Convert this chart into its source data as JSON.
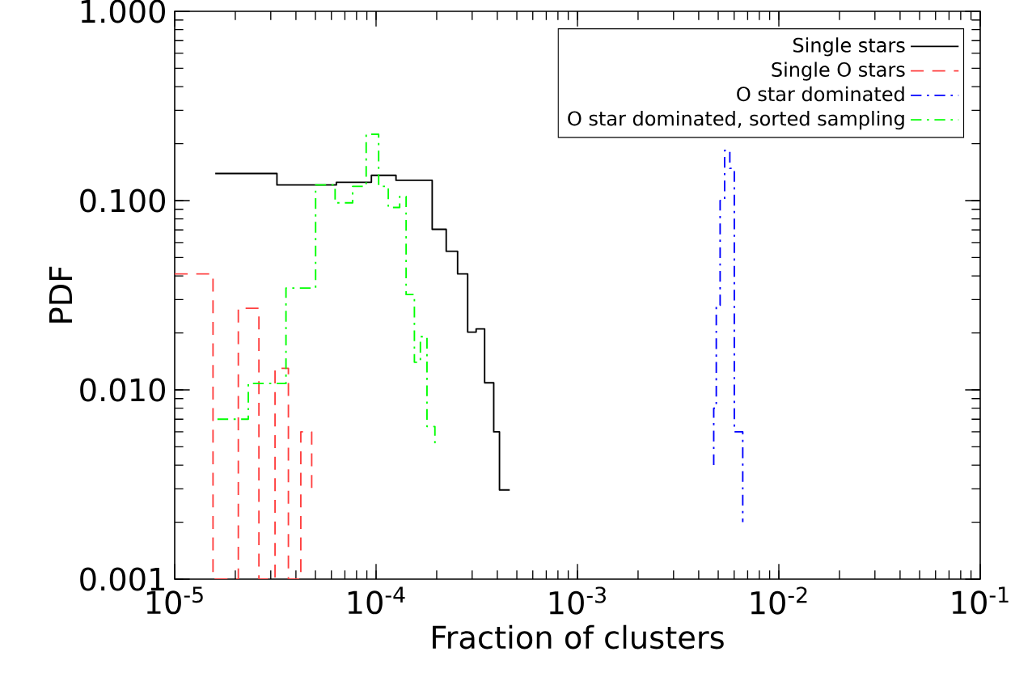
{
  "chart_data": {
    "type": "step",
    "xlabel": "Fraction of clusters",
    "ylabel": "PDF",
    "log": "xy",
    "xlim": [
      1e-05,
      0.1
    ],
    "ylim": [
      0.001,
      1.0
    ],
    "xticks": [
      {
        "value": 1e-05,
        "label": "10$^{-5}$"
      },
      {
        "value": 0.0001,
        "label": "10$^{-4}$"
      },
      {
        "value": 0.001,
        "label": "10$^{-3}$"
      },
      {
        "value": 0.01,
        "label": "10$^{-2}$"
      },
      {
        "value": 0.1,
        "label": "10$^{-1}$"
      }
    ],
    "yticks": [
      {
        "value": 0.001,
        "label": "0.001"
      },
      {
        "value": 0.01,
        "label": "0.010"
      },
      {
        "value": 0.1,
        "label": "0.100"
      },
      {
        "value": 1.0,
        "label": "1.000"
      }
    ],
    "legend": "top right",
    "grid": false,
    "marker": "none",
    "series": [
      {
        "name": "Single stars",
        "color": "#000000",
        "line_style": "solid",
        "x": [
          1.59e-05,
          3.22e-05,
          6.35e-05,
          9.48e-05,
          0.0001256,
          0.00019,
          0.000223,
          0.000254,
          0.000285,
          0.000314,
          0.000346,
          0.000384,
          0.00041,
          0.000461
        ],
        "values": [
          0.139,
          0.121,
          0.125,
          0.136,
          0.128,
          0.0705,
          0.054,
          0.041,
          0.0202,
          0.021,
          0.0109,
          0.006,
          0.00296,
          0.00296
        ]
      },
      {
        "name": "Single O stars",
        "color": "#ff4040",
        "line_style": "dashed",
        "x": [
          1e-05,
          1.55e-05,
          2.07e-05,
          2.62e-05,
          3.15e-05,
          3.67e-05,
          4.23e-05,
          4.79e-05
        ],
        "values": [
          0.041,
          0.001,
          0.027,
          0.001,
          0.013,
          0.001,
          0.006,
          0.003
        ]
      },
      {
        "name": "O star dominated",
        "color": "#0000ff",
        "line_style": "dashdot",
        "x": [
          0.00475,
          0.00475,
          0.00489,
          0.00511,
          0.00538,
          0.00571,
          0.00601,
          0.00662,
          0.00662
        ],
        "values": [
          0.004,
          0.008,
          0.028,
          0.1,
          0.184,
          0.148,
          0.006,
          0.002,
          0.002
        ]
      },
      {
        "name": "O star dominated, sorted sampling",
        "color": "#00ff00",
        "line_style": "dashdot",
        "x": [
          1.63e-05,
          2.32e-05,
          3.57e-05,
          5.01e-05,
          6.26e-05,
          7.65e-05,
          8.93e-05,
          0.000103,
          0.000115,
          0.000131,
          0.000141,
          0.000155,
          0.000166,
          0.000179,
          0.000196
        ],
        "values": [
          0.007,
          0.0108,
          0.0345,
          0.121,
          0.0973,
          0.119,
          0.224,
          0.119,
          0.092,
          0.105,
          0.0319,
          0.014,
          0.0191,
          0.0064,
          0.005
        ]
      }
    ]
  }
}
